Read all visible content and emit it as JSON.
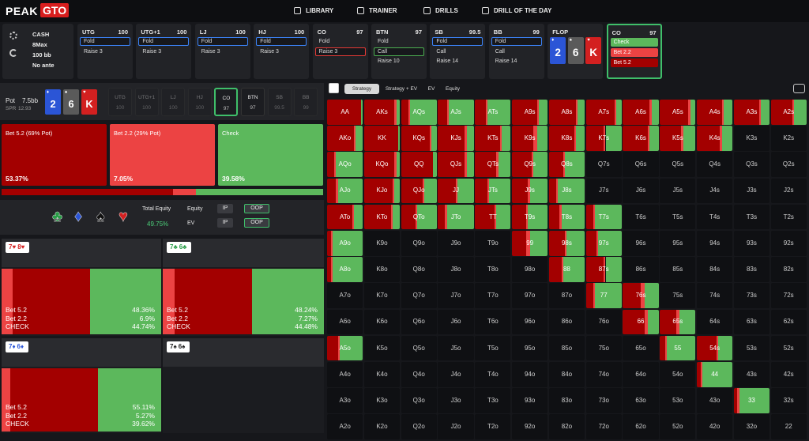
{
  "nav": {
    "logo": [
      "PEAK",
      "GTO"
    ],
    "items": [
      "LIBRARY",
      "TRAINER",
      "DRILLS",
      "DRILL OF THE DAY"
    ]
  },
  "game": {
    "lines": [
      "CASH",
      "8Max",
      "100 bb",
      "No ante"
    ]
  },
  "positions": [
    {
      "name": "UTG",
      "stack": 100,
      "actions": [
        "Fold",
        "Raise 3"
      ],
      "selected": 0
    },
    {
      "name": "UTG+1",
      "stack": 100,
      "actions": [
        "Fold",
        "Raise 3"
      ],
      "selected": 0
    },
    {
      "name": "LJ",
      "stack": 100,
      "actions": [
        "Fold",
        "Raise 3"
      ],
      "selected": 0
    },
    {
      "name": "HJ",
      "stack": 100,
      "actions": [
        "Fold",
        "Raise 3"
      ],
      "selected": 0
    },
    {
      "name": "CO",
      "stack": 97,
      "actions": [
        "Fold",
        "Raise 3"
      ],
      "selected": 1
    },
    {
      "name": "BTN",
      "stack": 97,
      "actions": [
        "Fold",
        "Call",
        "Raise 10"
      ],
      "selected": 1
    },
    {
      "name": "SB",
      "stack": 99.5,
      "actions": [
        "Fold",
        "Call",
        "Raise 14"
      ],
      "selected": 0
    },
    {
      "name": "BB",
      "stack": 99,
      "actions": [
        "Fold",
        "Call",
        "Raise 14"
      ],
      "selected": 0
    }
  ],
  "flop": {
    "label": "FLOP",
    "cards": [
      {
        "rank": "2",
        "suit": "♦"
      },
      {
        "rank": "6",
        "suit": "♠"
      },
      {
        "rank": "K",
        "suit": "♥"
      }
    ]
  },
  "current": {
    "name": "CO",
    "stack": 97,
    "actions": [
      "Check",
      "Bet 2.2",
      "Bet 5.2"
    ]
  },
  "pot": {
    "label": "Pot",
    "value": "7.5bb",
    "spr_label": "SPR",
    "spr": "12.93"
  },
  "strategy": {
    "actions": [
      {
        "label": "Bet 5.2 (69% Pot)",
        "value": 53.37,
        "value_label": "53.37%",
        "color": "#a30000"
      },
      {
        "label": "Bet 2.2 (29% Pot)",
        "value": 7.05,
        "value_label": "7.05%",
        "color": "#ec4343"
      },
      {
        "label": "Check",
        "value": 39.58,
        "value_label": "39.58%",
        "color": "#5cb85c"
      }
    ]
  },
  "equity": {
    "suits": [
      "♣",
      "♦",
      "♠",
      "♥"
    ],
    "total_label": "Total Equity",
    "total": "49.75%",
    "rows": [
      {
        "label": "Equity",
        "options": [
          "IP",
          "OOP"
        ]
      },
      {
        "label": "EV",
        "options": [
          "IP",
          "OOP"
        ]
      }
    ]
  },
  "hand_panels": [
    {
      "cards": [
        "7♥",
        "8♥"
      ],
      "labels": [
        "Bet 5.2",
        "Bet 2.2",
        "CHECK"
      ],
      "values": [
        48.36,
        6.9,
        44.74
      ],
      "value_labels": [
        "48.36%",
        "6.9%",
        "44.74%"
      ]
    },
    {
      "cards": [
        "7♣",
        "6♣"
      ],
      "labels": [
        "Bet 5.2",
        "Bet 2.2",
        "CHECK"
      ],
      "values": [
        48.24,
        7.27,
        44.48
      ],
      "value_labels": [
        "48.24%",
        "7.27%",
        "44.48%"
      ]
    },
    {
      "cards": [
        "7♦",
        "6♦"
      ],
      "labels": [
        "Bet 5.2",
        "Bet 2.2",
        "CHECK"
      ],
      "values": [
        55.11,
        5.27,
        39.62
      ],
      "value_labels": [
        "55.11%",
        "5.27%",
        "39.62%"
      ]
    },
    {
      "cards": [
        "7♠",
        "6♠"
      ]
    }
  ],
  "tabs": [
    "Strategy",
    "Strategy + EV",
    "EV",
    "Equity"
  ],
  "matrix": {
    "labels": [
      [
        "AA",
        "AKs",
        "AQs",
        "AJs",
        "ATs",
        "A9s",
        "A8s",
        "A7s",
        "A6s",
        "A5s",
        "A4s",
        "A3s",
        "A2s"
      ],
      [
        "AKo",
        "KK",
        "KQs",
        "KJs",
        "KTs",
        "K9s",
        "K8s",
        "K7s",
        "K6s",
        "K5s",
        "K4s",
        "K3s",
        "K2s"
      ],
      [
        "AQo",
        "KQo",
        "QQ",
        "QJs",
        "QTs",
        "Q9s",
        "Q8s",
        "Q7s",
        "Q6s",
        "Q5s",
        "Q4s",
        "Q3s",
        "Q2s"
      ],
      [
        "AJo",
        "KJo",
        "QJo",
        "JJ",
        "JTs",
        "J9s",
        "J8s",
        "J7s",
        "J6s",
        "J5s",
        "J4s",
        "J3s",
        "J2s"
      ],
      [
        "ATo",
        "KTo",
        "QTo",
        "JTo",
        "TT",
        "T9s",
        "T8s",
        "T7s",
        "T6s",
        "T5s",
        "T4s",
        "T3s",
        "T2s"
      ],
      [
        "A9o",
        "K9o",
        "Q9o",
        "J9o",
        "T9o",
        "99",
        "98s",
        "97s",
        "96s",
        "95s",
        "94s",
        "93s",
        "92s"
      ],
      [
        "A8o",
        "K8o",
        "Q8o",
        "J8o",
        "T8o",
        "98o",
        "88",
        "87s",
        "86s",
        "85s",
        "84s",
        "83s",
        "82s"
      ],
      [
        "A7o",
        "K7o",
        "Q7o",
        "J7o",
        "T7o",
        "97o",
        "87o",
        "77",
        "76s",
        "75s",
        "74s",
        "73s",
        "72s"
      ],
      [
        "A6o",
        "K6o",
        "Q6o",
        "J6o",
        "T6o",
        "96o",
        "86o",
        "76o",
        "66",
        "65s",
        "64s",
        "63s",
        "62s"
      ],
      [
        "A5o",
        "K5o",
        "Q5o",
        "J5o",
        "T5o",
        "95o",
        "85o",
        "75o",
        "65o",
        "55",
        "54s",
        "53s",
        "52s"
      ],
      [
        "A4o",
        "K4o",
        "Q4o",
        "J4o",
        "T4o",
        "94o",
        "84o",
        "74o",
        "64o",
        "54o",
        "44",
        "43s",
        "42s"
      ],
      [
        "A3o",
        "K3o",
        "Q3o",
        "J3o",
        "T3o",
        "93o",
        "83o",
        "73o",
        "63o",
        "53o",
        "43o",
        "33",
        "32s"
      ],
      [
        "A2o",
        "K2o",
        "Q2o",
        "J2o",
        "T2o",
        "92o",
        "82o",
        "72o",
        "62o",
        "52o",
        "42o",
        "32o",
        "22"
      ]
    ],
    "freqs": [
      [
        [
          95,
          0,
          5
        ],
        [
          85,
          5,
          10
        ],
        [
          20,
          5,
          75
        ],
        [
          25,
          5,
          70
        ],
        [
          30,
          5,
          65
        ],
        [
          70,
          5,
          25
        ],
        [
          75,
          5,
          20
        ],
        [
          80,
          5,
          15
        ],
        [
          75,
          5,
          20
        ],
        [
          80,
          5,
          15
        ],
        [
          70,
          5,
          25
        ],
        [
          70,
          5,
          25
        ],
        [
          60,
          5,
          35
        ]
      ],
      [
        [
          75,
          5,
          20
        ],
        [
          95,
          0,
          5
        ],
        [
          80,
          5,
          15
        ],
        [
          75,
          5,
          20
        ],
        [
          70,
          5,
          25
        ],
        [
          60,
          10,
          30
        ],
        [
          70,
          5,
          25
        ],
        [
          50,
          5,
          45
        ],
        [
          70,
          5,
          25
        ],
        [
          60,
          5,
          35
        ],
        [
          65,
          5,
          30
        ],
        null,
        null
      ],
      [
        [
          20,
          5,
          75
        ],
        [
          85,
          5,
          10
        ],
        [
          90,
          0,
          10
        ],
        [
          75,
          5,
          20
        ],
        [
          60,
          5,
          35
        ],
        [
          55,
          5,
          40
        ],
        [
          40,
          5,
          55
        ],
        null,
        null,
        null,
        null,
        null,
        null
      ],
      [
        [
          25,
          5,
          70
        ],
        [
          80,
          5,
          15
        ],
        [
          60,
          5,
          35
        ],
        [
          50,
          5,
          45
        ],
        [
          35,
          5,
          60
        ],
        [
          45,
          5,
          50
        ],
        [
          20,
          5,
          75
        ],
        null,
        null,
        null,
        null,
        null,
        null
      ],
      [
        [
          70,
          5,
          25
        ],
        [
          75,
          5,
          20
        ],
        [
          40,
          5,
          55
        ],
        [
          20,
          5,
          75
        ],
        [
          55,
          5,
          40
        ],
        [
          40,
          5,
          55
        ],
        [
          30,
          5,
          65
        ],
        [
          20,
          5,
          75
        ],
        null,
        null,
        null,
        null,
        null
      ],
      [
        [
          10,
          5,
          85
        ],
        null,
        null,
        null,
        null,
        [
          40,
          10,
          50
        ],
        [
          45,
          5,
          50
        ],
        [
          30,
          5,
          65
        ],
        null,
        null,
        null,
        null,
        null
      ],
      [
        [
          10,
          5,
          85
        ],
        null,
        null,
        null,
        null,
        null,
        [
          35,
          5,
          60
        ],
        [
          50,
          5,
          45
        ],
        null,
        null,
        null,
        null,
        null
      ],
      [
        null,
        null,
        null,
        null,
        null,
        null,
        null,
        [
          20,
          5,
          75
        ],
        [
          50,
          10,
          40
        ],
        null,
        null,
        null,
        null
      ],
      [
        null,
        null,
        null,
        null,
        null,
        null,
        null,
        null,
        [
          60,
          10,
          30
        ],
        [
          45,
          10,
          45
        ],
        null,
        null,
        null
      ],
      [
        [
          30,
          5,
          65
        ],
        null,
        null,
        null,
        null,
        null,
        null,
        null,
        null,
        [
          15,
          5,
          80
        ],
        [
          55,
          5,
          40
        ],
        null,
        null
      ],
      [
        null,
        null,
        null,
        null,
        null,
        null,
        null,
        null,
        null,
        null,
        [
          10,
          5,
          85
        ],
        null,
        null
      ],
      [
        null,
        null,
        null,
        null,
        null,
        null,
        null,
        null,
        null,
        null,
        null,
        [
          10,
          5,
          85
        ],
        null
      ],
      [
        null,
        null,
        null,
        null,
        null,
        null,
        null,
        null,
        null,
        null,
        null,
        null,
        null
      ]
    ]
  }
}
